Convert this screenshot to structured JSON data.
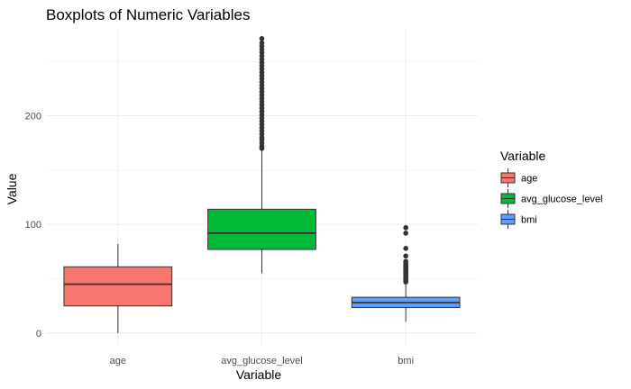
{
  "chart_data": {
    "type": "boxplot",
    "title": "Boxplots of Numeric Variables",
    "xlabel": "Variable",
    "ylabel": "Value",
    "ylim": [
      -10,
      280
    ],
    "y_ticks": [
      0,
      100,
      200
    ],
    "grid": true,
    "legend": {
      "title": "Variable",
      "placement": "right"
    },
    "categories": [
      "age",
      "avg_glucose_level",
      "bmi"
    ],
    "series": [
      {
        "name": "age",
        "color": "#F8766D",
        "stats": {
          "min": 0.08,
          "q1": 25,
          "median": 45,
          "q3": 61,
          "max": 82
        },
        "outliers": []
      },
      {
        "name": "avg_glucose_level",
        "color": "#00BA38",
        "stats": {
          "min": 55,
          "q1": 77,
          "median": 92,
          "q3": 114,
          "max": 169
        },
        "outliers": [
          170,
          172,
          175,
          178,
          180,
          183,
          186,
          189,
          192,
          195,
          198,
          201,
          204,
          207,
          210,
          213,
          216,
          219,
          222,
          225,
          228,
          231,
          234,
          237,
          240,
          243,
          246,
          249,
          252,
          255,
          258,
          261,
          264,
          267,
          271
        ]
      },
      {
        "name": "bmi",
        "color": "#619CFF",
        "stats": {
          "min": 10.3,
          "q1": 23.5,
          "median": 28,
          "q3": 33,
          "max": 46
        },
        "outliers": [
          47,
          48,
          49,
          50,
          51,
          52,
          53,
          54,
          55,
          56,
          57,
          58,
          59,
          60,
          61,
          62,
          64,
          66,
          71,
          78,
          92,
          97
        ]
      }
    ]
  }
}
